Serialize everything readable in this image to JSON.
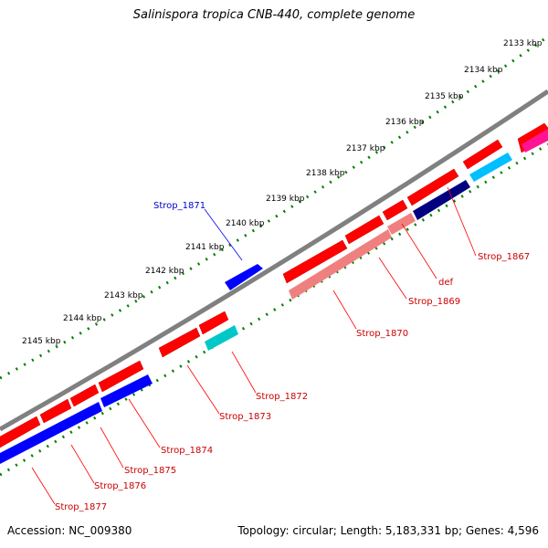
{
  "header": {
    "title": "Salinispora tropica CNB-440, complete genome"
  },
  "footer": {
    "accession": "Accession: NC_009380",
    "summary": "Topology: circular; Length: 5,183,331 bp; Genes: 4,596"
  },
  "ticks": {
    "labels": [
      "2133 kbp",
      "2134 kbp",
      "2135 kbp",
      "2136 kbp",
      "2137 kbp",
      "2138 kbp",
      "2139 kbp",
      "2140 kbp",
      "2141 kbp",
      "2142 kbp",
      "2143 kbp",
      "2144 kbp",
      "2145 kbp"
    ]
  },
  "genes": {
    "forward_labels": [
      "Strop_1871"
    ],
    "reverse_labels": [
      "Strop_1867",
      "def",
      "Strop_1869",
      "Strop_1870",
      "Strop_1872",
      "Strop_1873",
      "Strop_1874",
      "Strop_1875",
      "Strop_1876",
      "Strop_1877"
    ]
  },
  "colors": {
    "backbone": "#808080",
    "cds": "#ff0000",
    "cds_light": "#f08080",
    "forward_gene": "#0000ff",
    "reverse_gene": "#0000ff",
    "navy_gene": "#000080",
    "cyan_gene": "#00bfff",
    "teal_gene": "#00c8c8",
    "magenta_gene": "#ff1493",
    "tick": "#008000",
    "forward_label": "#0000cc",
    "reverse_label": "#cc0000"
  }
}
